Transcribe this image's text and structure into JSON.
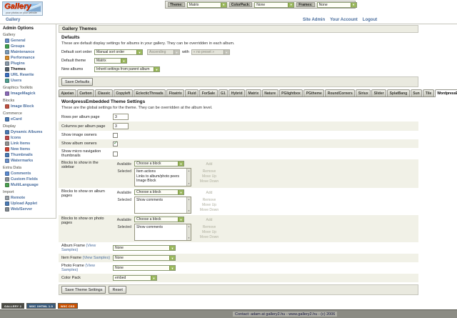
{
  "topbar": {
    "theme_label": "Theme:",
    "theme_value": "Matrix",
    "colorpack_label": "ColorPack:",
    "colorpack_value": "None",
    "frames_label": "Frames:",
    "frames_value": "None"
  },
  "logo": {
    "title": "Gallery",
    "tagline": "your photos on your website"
  },
  "breadcrumb": "Gallery",
  "account_links": [
    "Site Admin",
    "Your Account",
    "Logout"
  ],
  "sidebar": {
    "heading": "Admin Options",
    "groups": [
      {
        "title": "Gallery",
        "items": [
          {
            "label": "General",
            "icon": "general-icon",
            "color": "#6a8fc8"
          },
          {
            "label": "Groups",
            "icon": "groups-icon",
            "color": "#3f9e4f"
          },
          {
            "label": "Maintenance",
            "icon": "maintenance-icon",
            "color": "#7a9ab8"
          },
          {
            "label": "Performance",
            "icon": "performance-icon",
            "color": "#d88b2a"
          },
          {
            "label": "Plugins",
            "icon": "plugins-icon",
            "color": "#8898a8"
          },
          {
            "label": "Themes",
            "icon": "themes-icon",
            "color": "#55606a",
            "active": true
          },
          {
            "label": "URL Rewrite",
            "icon": "url-rewrite-icon",
            "color": "#3a6fc0"
          },
          {
            "label": "Users",
            "icon": "users-icon",
            "color": "#4f9e8f"
          }
        ]
      },
      {
        "title": "Graphics Toolkits",
        "items": [
          {
            "label": "ImageMagick",
            "icon": "imagemagick-icon",
            "color": "#8a6ab8"
          }
        ]
      },
      {
        "title": "Blocks",
        "items": [
          {
            "label": "Image Block",
            "icon": "image-block-icon",
            "color": "#c05040"
          }
        ]
      },
      {
        "title": "Commerce",
        "items": [
          {
            "label": "eCard",
            "icon": "ecard-icon",
            "color": "#4a7ab5"
          }
        ]
      },
      {
        "title": "Display",
        "items": [
          {
            "label": "Dynamic Albums",
            "icon": "dynamic-albums-icon",
            "color": "#4a7ab5"
          },
          {
            "label": "Icons",
            "icon": "icons-icon",
            "color": "#c04a4a"
          },
          {
            "label": "Link Items",
            "icon": "link-items-icon",
            "color": "#909090"
          },
          {
            "label": "New Items",
            "icon": "new-items-icon",
            "color": "#d04030"
          },
          {
            "label": "Thumbnails",
            "icon": "thumbnails-icon",
            "color": "#4a7ab5"
          },
          {
            "label": "Watermarks",
            "icon": "watermarks-icon",
            "color": "#6a8fc8"
          }
        ]
      },
      {
        "title": "Extra Data",
        "items": [
          {
            "label": "Comments",
            "icon": "comments-icon",
            "color": "#5a8ad0"
          },
          {
            "label": "Custom Fields",
            "icon": "custom-fields-icon",
            "color": "#8a9098"
          },
          {
            "label": "MultiLanguage",
            "icon": "multilanguage-icon",
            "color": "#4aa050"
          }
        ]
      },
      {
        "title": "Import",
        "items": [
          {
            "label": "Remote",
            "icon": "remote-icon",
            "color": "#98a0a8"
          },
          {
            "label": "Upload Applet",
            "icon": "upload-applet-icon",
            "color": "#4a7ab5"
          },
          {
            "label": "Web/Server",
            "icon": "web-server-icon",
            "color": "#808890"
          }
        ]
      }
    ]
  },
  "main": {
    "page_title": "Gallery Themes",
    "defaults": {
      "heading": "Defaults",
      "description": "These are default display settings for albums in your gallery. They can be overridden in each album.",
      "sort_row": {
        "label": "Default sort order",
        "order_value": "Manual sort order",
        "direction_value": "Ascending",
        "conjunction": "with",
        "preset_value": "« no preset »"
      },
      "theme_row": {
        "label": "Default theme",
        "value": "Matrix"
      },
      "new_albums_row": {
        "label": "New albums",
        "value": "Inherit settings from parent album"
      },
      "save_button": "Save Defaults"
    },
    "tabs": [
      {
        "label": "Ajaxian"
      },
      {
        "label": "Carbon"
      },
      {
        "label": "Classic"
      },
      {
        "label": "Copyleft"
      },
      {
        "label": "EclecticThreads"
      },
      {
        "label": "Floatrix"
      },
      {
        "label": "Fluid"
      },
      {
        "label": "ForSale"
      },
      {
        "label": "G1"
      },
      {
        "label": "Hybrid"
      },
      {
        "label": "Matrix"
      },
      {
        "label": "Nature"
      },
      {
        "label": "PGlightbox"
      },
      {
        "label": "PGtheme"
      },
      {
        "label": "RoundCorners"
      },
      {
        "label": "Siriux"
      },
      {
        "label": "Slider"
      },
      {
        "label": "SplatBang"
      },
      {
        "label": "Sun"
      },
      {
        "label": "Tile"
      },
      {
        "label": "WordpressEmbedded",
        "active": true
      }
    ],
    "settings": {
      "heading": "WordpressEmbedded Theme Settings",
      "description": "These are the global settings for the theme. They can be overridden at the album level.",
      "rows_per_page": {
        "label": "Rows per album page",
        "value": "3"
      },
      "cols_per_page": {
        "label": "Columns per album page",
        "value": "3"
      },
      "show_image_owners": {
        "label": "Show image owners",
        "checked": false
      },
      "show_album_owners": {
        "label": "Show album owners",
        "checked": true
      },
      "show_micro_nav": {
        "label": "Show micro navigation thumbnails",
        "checked": false
      },
      "blocks_common": {
        "available_label": "Available",
        "selected_label": "Selected",
        "choose_value": "Choose a block",
        "add_label": "Add",
        "remove_label": "Remove",
        "move_up_label": "Move Up",
        "move_down_label": "Move Down"
      },
      "blocks_sidebar": {
        "label": "Blocks to show in the sidebar",
        "selected_items": [
          "Item actions",
          "Links to album/photo peers",
          "Image Block"
        ]
      },
      "blocks_album": {
        "label": "Blocks to show on album pages",
        "selected_items": [
          "Show comments"
        ]
      },
      "blocks_photo": {
        "label": "Blocks to show on photo pages",
        "selected_items": [
          "Show comments"
        ]
      },
      "album_frame": {
        "label": "Album Frame",
        "link": "(View Samples)",
        "value": "None"
      },
      "item_frame": {
        "label": "Item Frame",
        "link": "(View Samples)",
        "value": "None"
      },
      "photo_frame": {
        "label": "Photo Frame",
        "link": "(View Samples)",
        "value": "None"
      },
      "color_pack": {
        "label": "Color Pack",
        "value": "embed"
      },
      "save_button": "Save Theme Settings",
      "reset_button": "Reset"
    }
  },
  "badges": [
    {
      "label": "GALLERY 2",
      "bg": "#4a4a44"
    },
    {
      "label": "W3C XHTML 1.0",
      "bg": "#3a5a7a"
    },
    {
      "label": "W3C CSS",
      "bg": "#c85000"
    }
  ],
  "footer": {
    "text": "Contact: adam at gallery2.hu - www.gallery2.hu - (c) 2006"
  },
  "colors": {
    "link_blue": "#4a6e9e",
    "select_green": "#9ab85c",
    "row_alt": "#f1f1e7"
  }
}
